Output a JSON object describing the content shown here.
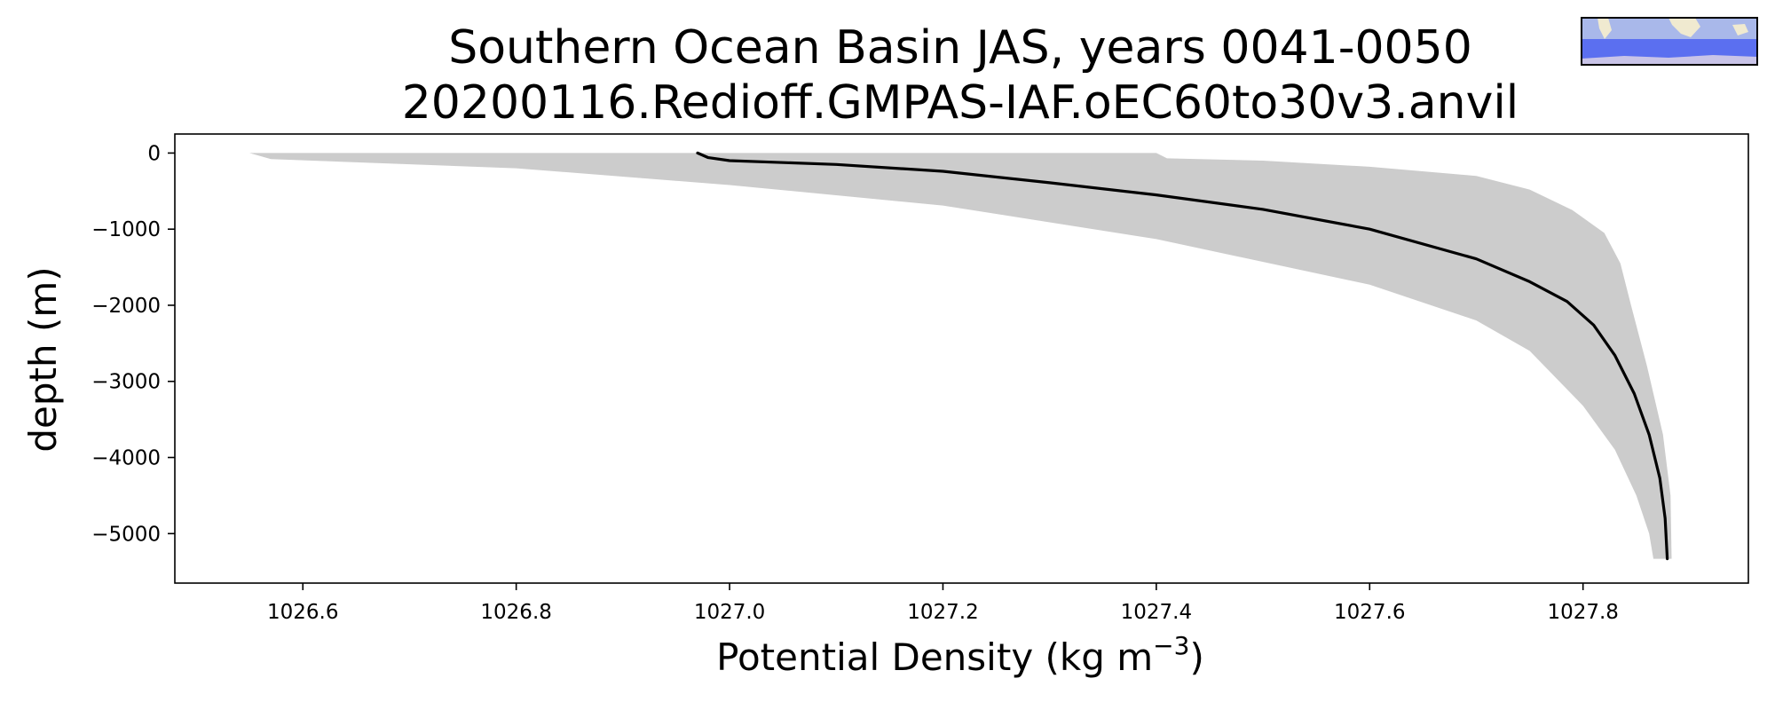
{
  "chart_data": {
    "type": "line",
    "title": "Southern Ocean Basin JAS, years 0041-0050",
    "subtitle": "20200116.Redioff.GMPAS-IAF.oEC60to30v3.anvil",
    "xlabel": {
      "prefix": "Potential Density (kg m",
      "superscript": "−3",
      "suffix": ")"
    },
    "ylabel": "depth (m)",
    "xlim": [
      1026.48,
      1027.955
    ],
    "ylim": [
      -5650,
      250
    ],
    "xticks": [
      1026.6,
      1026.8,
      1027.0,
      1027.2,
      1027.4,
      1027.6,
      1027.8
    ],
    "xtick_labels": [
      "1026.6",
      "1026.8",
      "1027.0",
      "1027.2",
      "1027.4",
      "1027.6",
      "1027.8"
    ],
    "yticks": [
      0,
      -1000,
      -2000,
      -3000,
      -4000,
      -5000
    ],
    "ytick_labels": [
      "0",
      "−1000",
      "−2000",
      "−3000",
      "−4000",
      "−5000"
    ],
    "grid": false,
    "colors": {
      "mean_line": "#000000",
      "spread_band": "#cccccc",
      "axes": "#000000"
    },
    "series": [
      {
        "kind": "mean",
        "points": [
          [
            1026.97,
            0
          ],
          [
            1026.98,
            -60
          ],
          [
            1027.0,
            -100
          ],
          [
            1027.1,
            -150
          ],
          [
            1027.2,
            -240
          ],
          [
            1027.3,
            -390
          ],
          [
            1027.4,
            -550
          ],
          [
            1027.5,
            -740
          ],
          [
            1027.6,
            -1000
          ],
          [
            1027.7,
            -1390
          ],
          [
            1027.75,
            -1690
          ],
          [
            1027.785,
            -1950
          ],
          [
            1027.81,
            -2260
          ],
          [
            1027.83,
            -2660
          ],
          [
            1027.848,
            -3160
          ],
          [
            1027.862,
            -3700
          ],
          [
            1027.872,
            -4270
          ],
          [
            1027.877,
            -4800
          ],
          [
            1027.879,
            -5330
          ]
        ]
      },
      {
        "kind": "spread",
        "upper": [
          [
            1027.4,
            0
          ],
          [
            1027.41,
            -70
          ],
          [
            1027.5,
            -100
          ],
          [
            1027.6,
            -180
          ],
          [
            1027.7,
            -300
          ],
          [
            1027.75,
            -480
          ],
          [
            1027.79,
            -750
          ],
          [
            1027.82,
            -1050
          ],
          [
            1027.835,
            -1450
          ],
          [
            1027.845,
            -2000
          ],
          [
            1027.86,
            -2800
          ],
          [
            1027.875,
            -3700
          ],
          [
            1027.882,
            -4500
          ],
          [
            1027.883,
            -5330
          ]
        ],
        "lower": [
          [
            1026.55,
            0
          ],
          [
            1026.57,
            -80
          ],
          [
            1026.8,
            -200
          ],
          [
            1027.0,
            -420
          ],
          [
            1027.2,
            -690
          ],
          [
            1027.4,
            -1130
          ],
          [
            1027.6,
            -1730
          ],
          [
            1027.7,
            -2200
          ],
          [
            1027.75,
            -2600
          ],
          [
            1027.8,
            -3320
          ],
          [
            1027.83,
            -3900
          ],
          [
            1027.85,
            -4500
          ],
          [
            1027.862,
            -5000
          ],
          [
            1027.866,
            -5330
          ]
        ]
      }
    ]
  },
  "inset_map": {
    "icon": "basin-map-icon",
    "ocean_color": "#5b6ff0",
    "land_color": "#f0ead0"
  }
}
